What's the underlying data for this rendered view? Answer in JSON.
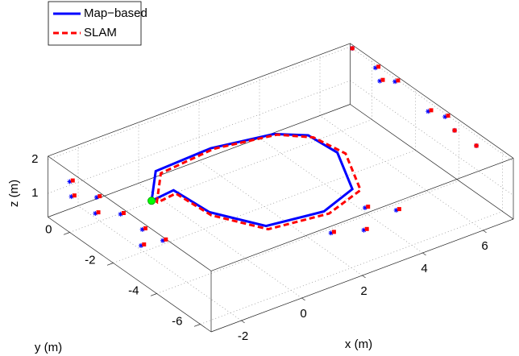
{
  "chart_data": {
    "type": "line3d",
    "xlabel": "x (m)",
    "ylabel": "y (m)",
    "zlabel": "z (m)",
    "xlim": [
      -3,
      7
    ],
    "ylim": [
      -6.5,
      1
    ],
    "zlim": [
      0.3,
      2.1
    ],
    "xticks": [
      -2,
      0,
      2,
      4,
      6
    ],
    "yticks": [
      -6,
      -4,
      -2,
      0
    ],
    "zticks": [
      1,
      2
    ],
    "grid": true,
    "legend": "upper left",
    "series": [
      {
        "name": "Map−based",
        "color": "#0000ff",
        "linestyle": "solid",
        "x": [
          -1.3,
          -0.3,
          1.6,
          3.4,
          4.1,
          4.2,
          3.4,
          2.1,
          0.4,
          -0.4,
          -0.5,
          -1.3
        ],
        "y": [
          -1.4,
          -0.2,
          -0.1,
          -0.5,
          -1.1,
          -2.3,
          -4.1,
          -4.6,
          -4.3,
          -2.8,
          -1.3,
          -1.4
        ],
        "z": [
          1.3,
          1.3,
          1.3,
          1.3,
          1.3,
          1.3,
          1.3,
          1.3,
          1.3,
          1.3,
          1.3,
          1.3
        ],
        "landmarks": {
          "x": [
            -3,
            -2.8,
            -2.9,
            -2.8,
            -2.9,
            -2.9,
            -2.8,
            -2.8,
            7,
            6.9,
            6.9,
            6.9,
            6.7,
            6.9,
            7,
            7,
            1.9,
            2.7,
            3.1,
            3.7
          ],
          "y": [
            0,
            0.2,
            -1.1,
            -0.9,
            -2.2,
            -3.2,
            -4,
            -3,
            0.9,
            -0.3,
            -0.5,
            -1.2,
            -3,
            -3.5,
            -3.8,
            -4.8,
            -5.2,
            -5.6,
            -5.1,
            -5.7
          ],
          "z": [
            1.8,
            1.2,
            1.8,
            1.2,
            1.8,
            1.8,
            1.8,
            1.2,
            2,
            2,
            1.7,
            2,
            2,
            2,
            1.7,
            1.7,
            1,
            1,
            1.3,
            1.3
          ]
        }
      },
      {
        "name": "SLAM",
        "color": "#ff0000",
        "linestyle": "dashed",
        "x": [
          -1.2,
          -0.2,
          1.7,
          3.5,
          4.2,
          4.4,
          3.6,
          2.2,
          0.4,
          -0.4,
          -0.5,
          -1.2
        ],
        "y": [
          -1.5,
          -0.3,
          -0.1,
          -0.5,
          -1.2,
          -2.4,
          -4.2,
          -4.7,
          -4.4,
          -2.9,
          -1.4,
          -1.5
        ],
        "z": [
          1.25,
          1.25,
          1.25,
          1.25,
          1.25,
          1.25,
          1.25,
          1.25,
          1.25,
          1.25,
          1.25,
          1.25
        ],
        "landmarks": {
          "x": [
            -2.9,
            -2.7,
            -2.8,
            -2.7,
            -2.8,
            -2.8,
            -2.7,
            -2.7,
            7,
            7,
            7,
            7,
            6.8,
            7,
            7,
            7,
            2,
            2.8,
            3.2,
            3.8
          ],
          "y": [
            0,
            0.2,
            -1.1,
            -0.9,
            -2.2,
            -3.2,
            -4,
            -3,
            0.9,
            -0.3,
            -0.5,
            -1.2,
            -3,
            -3.5,
            -3.8,
            -4.8,
            -5.2,
            -5.6,
            -5.1,
            -5.7
          ],
          "z": [
            1.8,
            1.2,
            1.8,
            1.2,
            1.8,
            1.8,
            1.8,
            1.2,
            2,
            2,
            1.7,
            2,
            2,
            2,
            1.7,
            1.7,
            1,
            1,
            1.3,
            1.3
          ]
        }
      }
    ],
    "start_point": {
      "x": -1.3,
      "y": -1.4,
      "z": 1.3,
      "color": "#00ff00"
    }
  }
}
